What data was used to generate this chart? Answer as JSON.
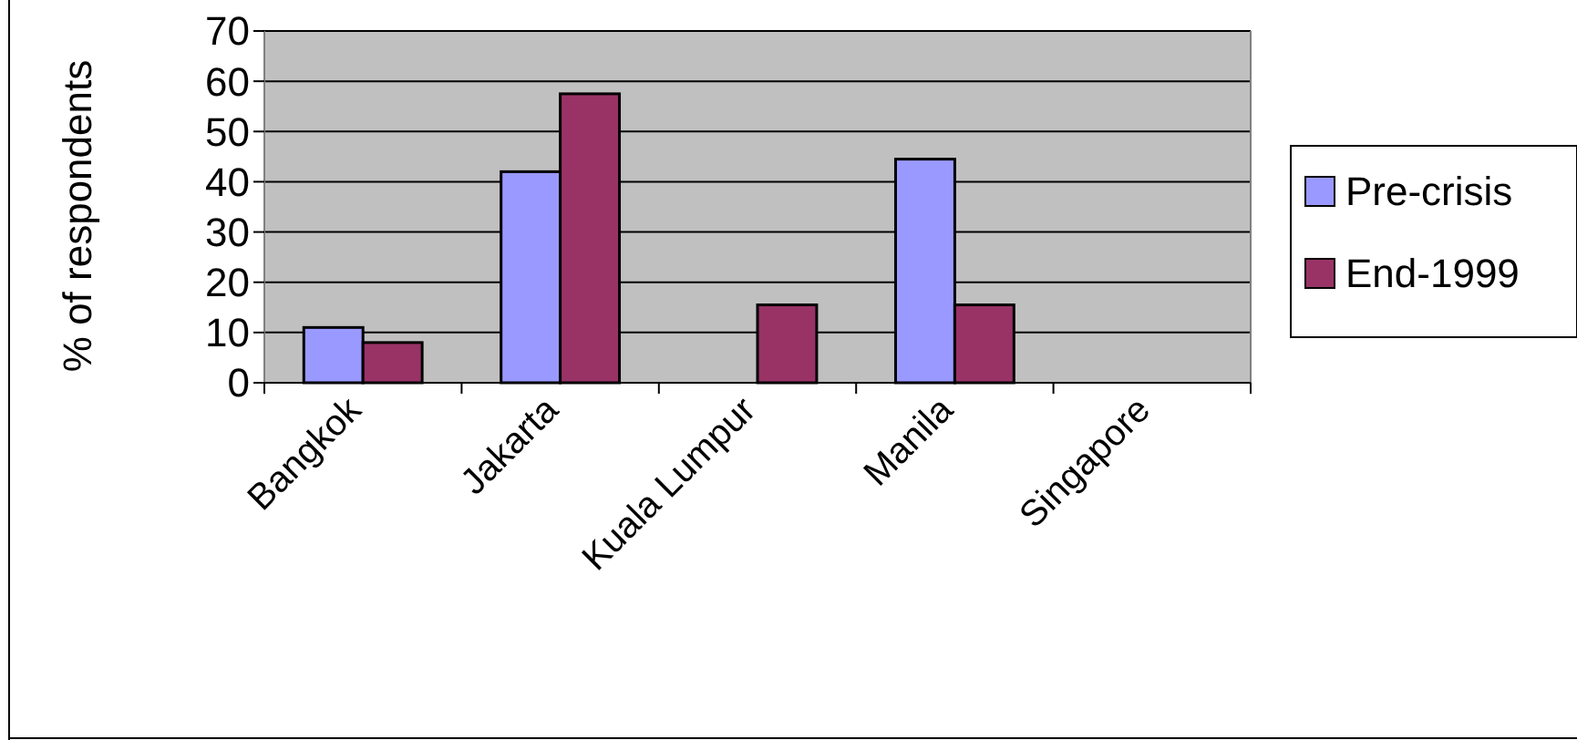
{
  "chart_data": {
    "type": "bar",
    "ylabel": "% of respondents",
    "categories": [
      "Bangkok",
      "Jakarta",
      "Kuala Lumpur",
      "Manila",
      "Singapore"
    ],
    "series": [
      {
        "name": "Pre-crisis",
        "color": "#9999ff",
        "values": [
          11,
          42,
          0,
          44.5,
          0
        ]
      },
      {
        "name": "End-1999",
        "color": "#993366",
        "values": [
          8,
          57.5,
          15.5,
          15.5,
          0
        ]
      }
    ],
    "ylim": [
      0,
      70
    ],
    "yticks": [
      0,
      10,
      20,
      30,
      40,
      50,
      60,
      70
    ],
    "grid": "y",
    "legend": "right"
  }
}
